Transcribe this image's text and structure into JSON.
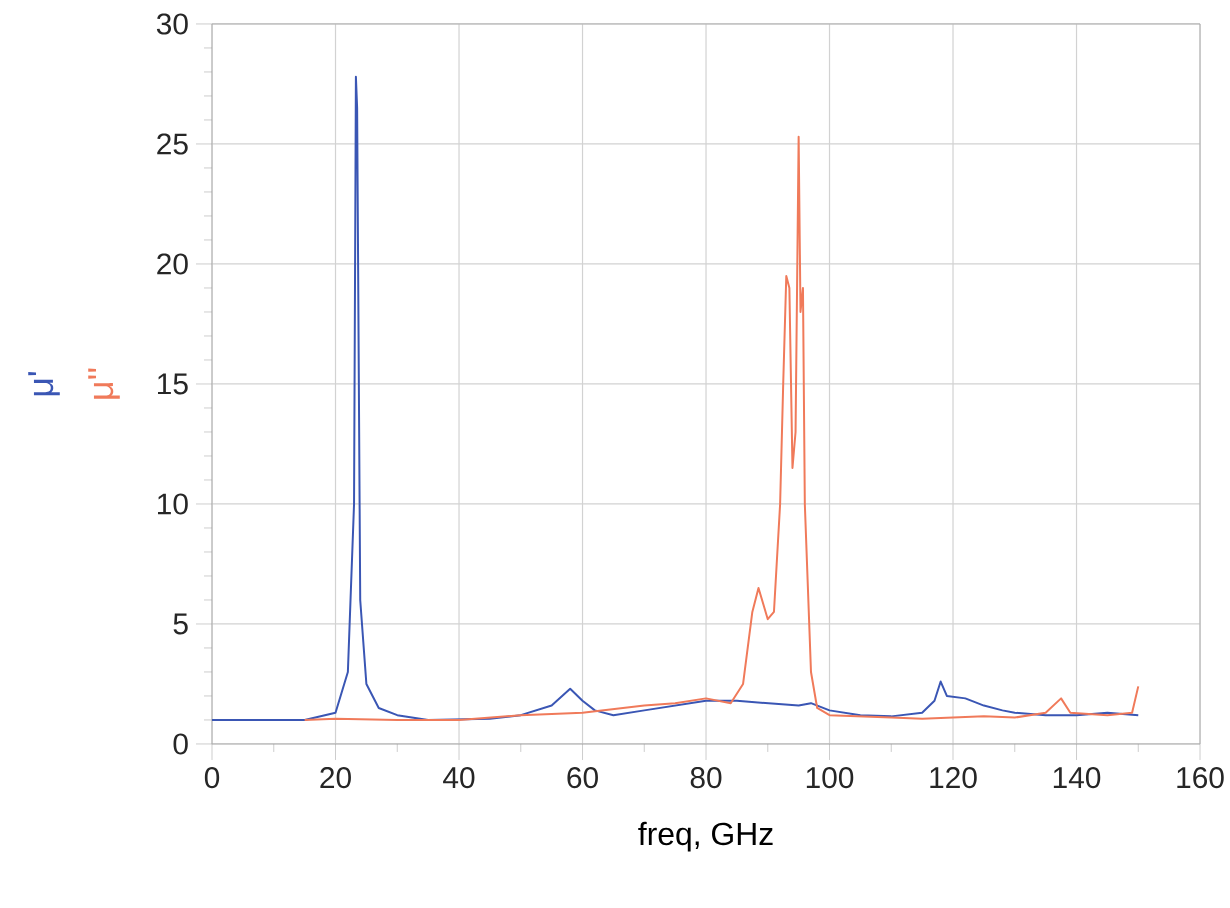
{
  "chart_data": {
    "type": "line",
    "xlabel": "freq, GHz",
    "legend": "left",
    "grid": true,
    "marker": "none",
    "line_style": "solid",
    "xlim": [
      0,
      160
    ],
    "xticks": [
      0,
      20,
      40,
      60,
      80,
      100,
      120,
      140,
      160
    ],
    "ylim": [
      0,
      30
    ],
    "yticks": [
      0,
      5,
      10,
      15,
      20,
      25,
      30
    ],
    "series": [
      {
        "name": "μ'",
        "color": "#3a56b4",
        "x": [
          0,
          15,
          20,
          22,
          23,
          23.3,
          23.5,
          24,
          25,
          27,
          30,
          35,
          45,
          50,
          55,
          58,
          60,
          62,
          65,
          70,
          75,
          80,
          85,
          90,
          95,
          97,
          100,
          105,
          110,
          115,
          117,
          118,
          119,
          122,
          125,
          128,
          130,
          135,
          140,
          145,
          150
        ],
        "values": [
          1.0,
          1.0,
          1.3,
          3,
          10,
          27.8,
          26.5,
          6,
          2.5,
          1.5,
          1.2,
          1.0,
          1.05,
          1.2,
          1.6,
          2.3,
          1.8,
          1.4,
          1.2,
          1.4,
          1.6,
          1.8,
          1.8,
          1.7,
          1.6,
          1.7,
          1.4,
          1.2,
          1.15,
          1.3,
          1.8,
          2.6,
          2.0,
          1.9,
          1.6,
          1.4,
          1.3,
          1.2,
          1.2,
          1.3,
          1.2
        ]
      },
      {
        "name": "μ''",
        "color": "#f07a5a",
        "x": [
          15,
          20,
          30,
          40,
          50,
          60,
          70,
          75,
          80,
          84,
          86,
          87.5,
          88.5,
          90,
          91,
          92,
          92.5,
          93,
          93.5,
          94,
          94.5,
          95,
          95.3,
          95.7,
          96,
          97,
          98,
          100,
          110,
          115,
          120,
          125,
          130,
          135,
          137.5,
          139,
          145,
          149,
          150
        ],
        "values": [
          1.0,
          1.05,
          1.0,
          1.0,
          1.2,
          1.3,
          1.6,
          1.7,
          1.9,
          1.7,
          2.5,
          5.5,
          6.5,
          5.2,
          5.5,
          10,
          15,
          19.5,
          19,
          11.5,
          13,
          25.3,
          18,
          19,
          10,
          3,
          1.5,
          1.2,
          1.1,
          1.05,
          1.1,
          1.15,
          1.1,
          1.3,
          1.9,
          1.3,
          1.2,
          1.3,
          2.4
        ]
      }
    ]
  }
}
